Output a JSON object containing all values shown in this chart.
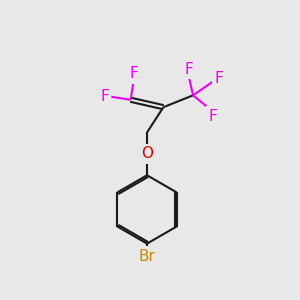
{
  "bg_color": "#e8e8e8",
  "bond_color": "#1a1a1a",
  "F_color": "#ee00ee",
  "O_color": "#dd0000",
  "Br_color": "#cc8800",
  "bond_width": 1.5,
  "font_size_atom": 11,
  "font_size_br": 11,
  "fig_width": 3.0,
  "fig_height": 3.0,
  "dpi": 100,
  "xlim": [
    0,
    10
  ],
  "ylim": [
    0,
    10
  ]
}
